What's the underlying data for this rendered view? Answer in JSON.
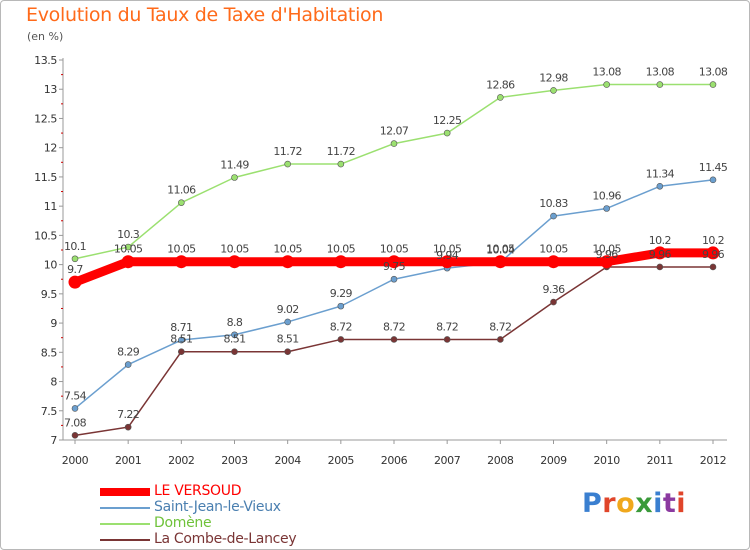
{
  "title": "Evolution du Taux de Taxe d'Habitation",
  "unit": "(en %)",
  "brand": {
    "text": "Proxiti",
    "letter_colors": [
      "#3a7fd0",
      "#e0452a",
      "#f0a81c",
      "#3a9a3a",
      "#3a7fd0",
      "#8b3aa0",
      "#e0452a"
    ]
  },
  "chart_data": {
    "type": "line",
    "x": [
      "2000",
      "2001",
      "2002",
      "2003",
      "2004",
      "2005",
      "2006",
      "2007",
      "2008",
      "2009",
      "2010",
      "2011",
      "2012"
    ],
    "ylim": [
      7,
      13.5
    ],
    "yticks": [
      "7",
      "7.5",
      "8",
      "8.5",
      "9",
      "9.5",
      "10",
      "10.5",
      "11",
      "11.5",
      "12",
      "12.5",
      "13",
      "13.5"
    ],
    "grid": false,
    "legend_position": "bottom-left",
    "series": [
      {
        "name": "LE VERSOUD",
        "color": "#ff0000",
        "values": [
          9.7,
          10.05,
          10.05,
          10.05,
          10.05,
          10.05,
          10.05,
          10.05,
          10.05,
          10.05,
          10.05,
          10.2,
          10.2
        ],
        "labels": [
          "9.7",
          "10.05",
          "10.05",
          "10.05",
          "10.05",
          "10.05",
          "10.05",
          "10.05",
          "10.05",
          "10.05",
          "10.05",
          "10.2",
          "10.2"
        ]
      },
      {
        "name": "Saint-Jean-le-Vieux",
        "color": "#6b9fcf",
        "values": [
          7.54,
          8.29,
          8.71,
          8.8,
          9.02,
          9.29,
          9.75,
          9.94,
          10.04,
          10.83,
          10.96,
          11.34,
          11.45
        ],
        "labels": [
          "7.54",
          "8.29",
          "8.71",
          "8.8",
          "9.02",
          "9.29",
          "9.75",
          "9.94",
          "10.04",
          "10.83",
          "10.96",
          "11.34",
          "11.45"
        ]
      },
      {
        "name": "Domène",
        "color": "#9be070",
        "values": [
          10.1,
          10.3,
          11.06,
          11.49,
          11.72,
          11.72,
          12.07,
          12.25,
          12.86,
          12.98,
          13.08,
          13.08,
          13.08
        ],
        "labels": [
          "10.1",
          "10.3",
          "11.06",
          "11.49",
          "11.72",
          "11.72",
          "12.07",
          "12.25",
          "12.86",
          "12.98",
          "13.08",
          "13.08",
          "13.08"
        ]
      },
      {
        "name": "La Combe-de-Lancey",
        "color": "#7a3535",
        "values": [
          7.08,
          7.22,
          8.51,
          8.51,
          8.51,
          8.72,
          8.72,
          8.72,
          8.72,
          9.36,
          9.96,
          9.96,
          9.96
        ],
        "labels": [
          "7.08",
          "7.22",
          "8.51",
          "8.51",
          "8.51",
          "8.72",
          "8.72",
          "8.72",
          "8.72",
          "9.36",
          "9.96",
          "9.96",
          "9.96"
        ]
      }
    ]
  }
}
